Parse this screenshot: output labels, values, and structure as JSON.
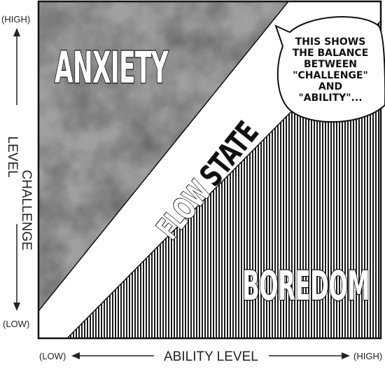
{
  "diagram": {
    "y_axis": {
      "high_label": "(HIGH)",
      "low_label": "(LOW)",
      "title_line1": "CHALLENGE",
      "title_line2": "LEVEL"
    },
    "x_axis": {
      "low_label": "(LOW)",
      "high_label": "(HIGH)",
      "title": "ABILITY LEVEL"
    },
    "regions": {
      "anxiety": "ANXIETY",
      "flow_word1": "FLOW",
      "flow_word2": "STATE",
      "boredom": "BOREDOM"
    },
    "speech_bubble": {
      "lines": [
        "THIS SHOWS",
        "THE BALANCE",
        "BETWEEN",
        "\"CHALLENGE\"",
        "AND",
        "\"ABILITY\"..."
      ]
    }
  }
}
